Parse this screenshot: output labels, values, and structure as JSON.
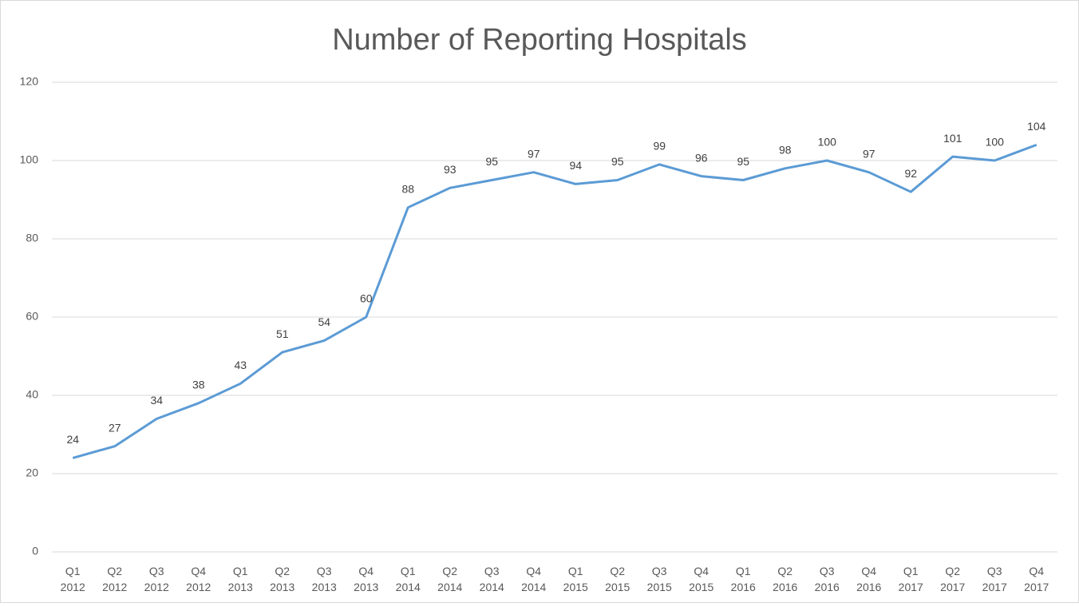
{
  "chart_data": {
    "type": "line",
    "title": "Number of Reporting Hospitals",
    "categories": [
      "Q1 2012",
      "Q2 2012",
      "Q3 2012",
      "Q4 2012",
      "Q1 2013",
      "Q2 2013",
      "Q3 2013",
      "Q4 2013",
      "Q1 2014",
      "Q2 2014",
      "Q3 2014",
      "Q4 2014",
      "Q1 2015",
      "Q2 2015",
      "Q3 2015",
      "Q4 2015",
      "Q1 2016",
      "Q2 2016",
      "Q3 2016",
      "Q4 2016",
      "Q1 2017",
      "Q2 2017",
      "Q3 2017",
      "Q4 2017"
    ],
    "values": [
      24,
      27,
      34,
      38,
      43,
      51,
      54,
      60,
      88,
      93,
      95,
      97,
      94,
      95,
      99,
      96,
      95,
      98,
      100,
      97,
      92,
      101,
      100,
      104
    ],
    "color": "#5b9bd5",
    "ylim": [
      0,
      120
    ],
    "yticks": [
      0,
      20,
      40,
      60,
      80,
      100,
      120
    ],
    "grid": true
  }
}
